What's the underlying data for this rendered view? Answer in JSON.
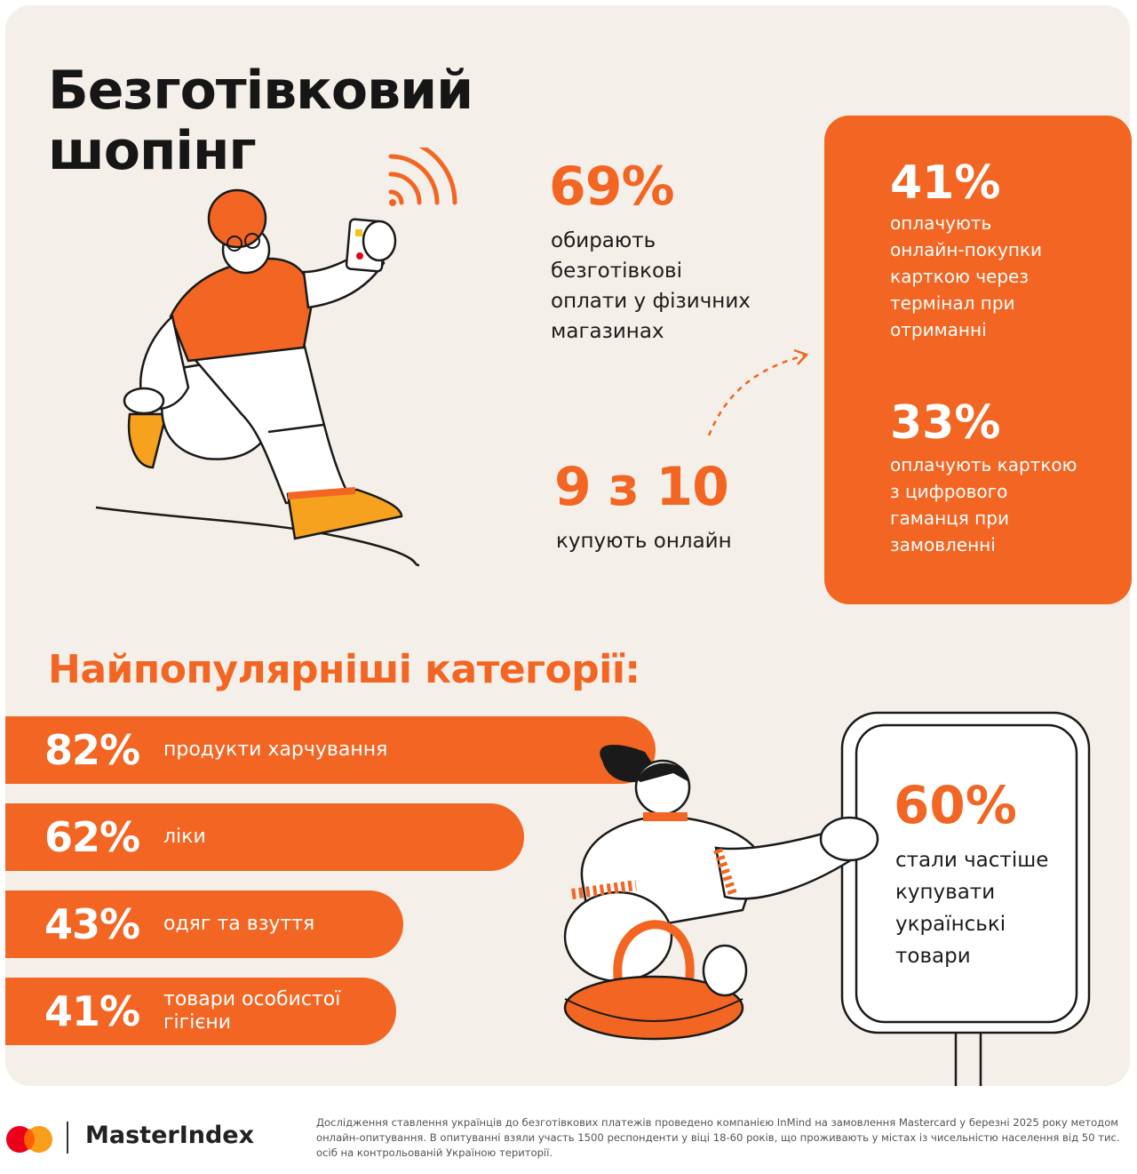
{
  "title": {
    "line1": "Безготівковий",
    "line2": "шопінг"
  },
  "stats": {
    "offline": {
      "value": "69%",
      "text_lines": [
        "обирають",
        "безготівкові",
        "оплати у фізичних",
        "магазинах"
      ]
    },
    "online": {
      "value": "9 з 10",
      "text": "купують онлайн"
    }
  },
  "orange_box": {
    "stat1": {
      "value": "41%",
      "text_lines": [
        "оплачують",
        "онлайн-покупки",
        "карткою через",
        "термінал при",
        "отриманні"
      ]
    },
    "stat2": {
      "value": "33%",
      "text_lines": [
        "оплачують карткою",
        "з цифрового",
        "гаманця при",
        "замовленні"
      ]
    }
  },
  "categories": {
    "heading": "Найпопулярніші категорії:",
    "items": [
      {
        "pct": "82%",
        "label_lines": [
          "продукти харчування"
        ]
      },
      {
        "pct": "62%",
        "label_lines": [
          "ліки"
        ]
      },
      {
        "pct": "43%",
        "label_lines": [
          "одяг та взуття"
        ]
      },
      {
        "pct": "41%",
        "label_lines": [
          "товари особистої",
          "гігієни"
        ]
      }
    ]
  },
  "sign": {
    "value": "60%",
    "text_lines": [
      "стали частіше",
      "купувати",
      "українські",
      "товари"
    ]
  },
  "footer": {
    "brand": "MasterIndex",
    "note": "Дослідження ставлення українців до безготівкових платежів проведено компанією InMind на замовлення Mastercard у березні 2025 року методом онлайн-опитування. В опитуванні взяли участь 1500 респонденти у віці 18-60 років, що проживають у містах із чисельністю населення від 50 тис. осіб на контрольованій Україною території."
  },
  "colors": {
    "accent": "#f26522",
    "background": "#f4efe8",
    "logo_red": "#eb001b",
    "logo_orange": "#f79e1b"
  }
}
